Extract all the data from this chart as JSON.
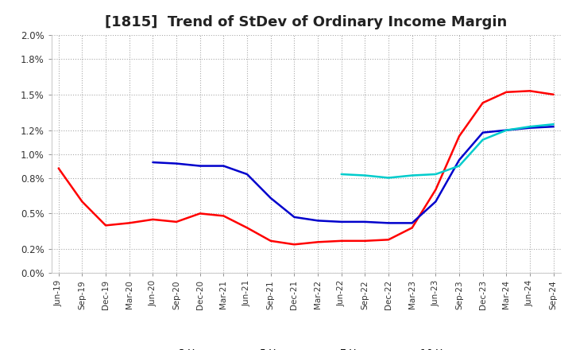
{
  "title": "[1815]  Trend of StDev of Ordinary Income Margin",
  "title_fontsize": 13,
  "background_color": "#ffffff",
  "grid_color": "#aaaaaa",
  "x_labels": [
    "Jun-19",
    "Sep-19",
    "Dec-19",
    "Mar-20",
    "Jun-20",
    "Sep-20",
    "Dec-20",
    "Mar-21",
    "Jun-21",
    "Sep-21",
    "Dec-21",
    "Mar-22",
    "Jun-22",
    "Sep-22",
    "Dec-22",
    "Mar-23",
    "Jun-23",
    "Sep-23",
    "Dec-23",
    "Mar-24",
    "Jun-24",
    "Sep-24"
  ],
  "ylim": [
    0.0,
    0.02
  ],
  "yticks": [
    0.0,
    0.002,
    0.005,
    0.008,
    0.01,
    0.012,
    0.015,
    0.018,
    0.02
  ],
  "ytick_labels": [
    "0.0%",
    "0.2%",
    "0.5%",
    "0.8%",
    "1.0%",
    "1.2%",
    "1.5%",
    "1.8%",
    "2.0%"
  ],
  "series": {
    "3 Years": {
      "color": "#ff0000",
      "values": [
        0.0088,
        0.006,
        0.004,
        0.0042,
        0.0045,
        0.0043,
        0.005,
        0.0048,
        0.0038,
        0.0027,
        0.0024,
        0.0026,
        0.0027,
        0.0027,
        0.0028,
        0.0038,
        0.007,
        0.0115,
        0.0143,
        0.0152,
        0.0153,
        0.015
      ]
    },
    "5 Years": {
      "color": "#0000cc",
      "values": [
        null,
        null,
        null,
        null,
        0.0093,
        0.0092,
        0.009,
        0.009,
        0.0083,
        0.0063,
        0.0047,
        0.0044,
        0.0043,
        0.0043,
        0.0042,
        0.0042,
        0.006,
        0.0095,
        0.0118,
        0.012,
        0.0122,
        0.0123
      ]
    },
    "7 Years": {
      "color": "#00cccc",
      "values": [
        null,
        null,
        null,
        null,
        null,
        null,
        null,
        null,
        null,
        null,
        null,
        null,
        0.0083,
        0.0082,
        0.008,
        0.0082,
        0.0083,
        0.009,
        0.0112,
        0.012,
        0.0123,
        0.0125
      ]
    },
    "10 Years": {
      "color": "#008000",
      "values": [
        null,
        null,
        null,
        null,
        null,
        null,
        null,
        null,
        null,
        null,
        null,
        null,
        null,
        null,
        null,
        null,
        null,
        null,
        null,
        null,
        null,
        null
      ]
    }
  }
}
